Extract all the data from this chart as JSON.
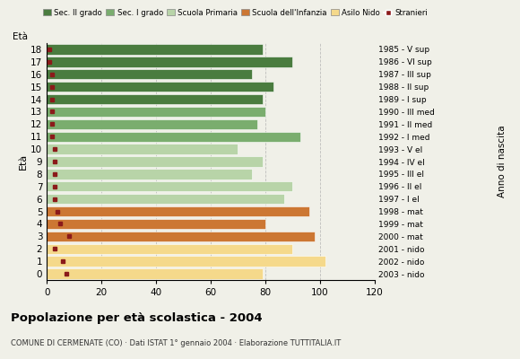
{
  "ages": [
    18,
    17,
    16,
    15,
    14,
    13,
    12,
    11,
    10,
    9,
    8,
    7,
    6,
    5,
    4,
    3,
    2,
    1,
    0
  ],
  "years": [
    "1985 - V sup",
    "1986 - VI sup",
    "1987 - III sup",
    "1988 - II sup",
    "1989 - I sup",
    "1990 - III med",
    "1991 - II med",
    "1992 - I med",
    "1993 - V el",
    "1994 - IV el",
    "1995 - III el",
    "1996 - II el",
    "1997 - I el",
    "1998 - mat",
    "1999 - mat",
    "2000 - mat",
    "2001 - nido",
    "2002 - nido",
    "2003 - nido"
  ],
  "bar_values": [
    79,
    90,
    75,
    83,
    79,
    80,
    77,
    93,
    70,
    79,
    75,
    90,
    87,
    96,
    80,
    98,
    90,
    102,
    79
  ],
  "stranieri": [
    1,
    1,
    2,
    2,
    2,
    2,
    2,
    2,
    3,
    3,
    3,
    3,
    3,
    4,
    5,
    8,
    3,
    6,
    7
  ],
  "bar_colors": [
    "#4a7c3f",
    "#4a7c3f",
    "#4a7c3f",
    "#4a7c3f",
    "#4a7c3f",
    "#7aad6e",
    "#7aad6e",
    "#7aad6e",
    "#b8d4a8",
    "#b8d4a8",
    "#b8d4a8",
    "#b8d4a8",
    "#b8d4a8",
    "#cc7733",
    "#cc7733",
    "#cc7733",
    "#f5d98b",
    "#f5d98b",
    "#f5d98b"
  ],
  "color_sec2": "#4a7c3f",
  "color_sec1": "#7aad6e",
  "color_primaria": "#b8d4a8",
  "color_infanzia": "#cc7733",
  "color_nido": "#f5d98b",
  "color_stranieri": "#8b1a1a",
  "title": "Popolazione per età scolastica - 2004",
  "subtitle": "COMUNE DI CERMENATE (CO) · Dati ISTAT 1° gennaio 2004 · Elaborazione TUTTITALIA.IT",
  "ylabel": "Età",
  "xlabel2": "Anno di nascita",
  "xlim": [
    0,
    120
  ],
  "xticks": [
    0,
    20,
    40,
    60,
    80,
    100,
    120
  ],
  "legend_labels": [
    "Sec. II grado",
    "Sec. I grado",
    "Scuola Primaria",
    "Scuola dell'Infanzia",
    "Asilo Nido",
    "Stranieri"
  ],
  "bg_color": "#f0f0e8",
  "grid_color": "#aaaaaa"
}
